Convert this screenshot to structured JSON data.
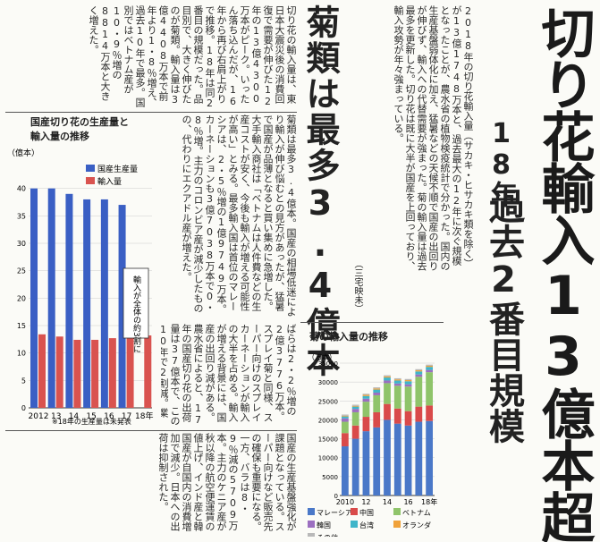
{
  "headline": {
    "main": "切り花輸入13億本超",
    "year": "18年",
    "sub": "過去2番目規模",
    "side": "菊類は最多3.4億本"
  },
  "byline": "（三宅映未）",
  "articles": {
    "col_a": [
      "2018年の切り花輸入量（サカキ・ヒサカキ類を除く）が13億1748万本と、過去最大の12年に次ぐ規模となったことが、農水省の植物検疫統計で分かった。国内の生産基盤弱体化に加え、猛暑などの天候不順で国産の出回りが伸びず、輸入への代替需要が強まった。菊の輸入量は過去最多を更新した。切り花は既に大半が国産を上回っており、輸入攻勢が年々強まっている。"
    ],
    "col_b": [
      "切り花の輸入量は、東日本大震災後の消費回復で需要が伸びた12年の13億4300万本がピーク。いったん落ち込んだが、16年から再び右肩上がりで推移。18年は同2番目の規模だった。品目別で、大きく伸びたのが菊類。輸入量は3億4408万本で前年より1・8％増え、過去10年で最多。国別ではベトナム産が10・9％増の8814万本と大きく増えた。"
    ],
    "col_c": [
      "菊類は最多3.4億本。国産の相場低迷により輸入が伸び悩むとの見方があったが、猛暑で国産が品薄となると買い集めに急増した。大手輸入商社は「ベトナムは人件費などの生産コストが安く、今後も輸入が増える可能性が高い」とみる。最多輸入国は首位のマレーシアは、2・5％増の1億9749万本。カーネーションも3億7038万本で0・8％増。主力のコロンビア産が減少したものの、代わりにエクアドル産が増えた。"
    ],
    "col_d": [
      "ばらは2・2％増の2億3776万本。スプレイ菊と同様、スーパー向けのスプレイカーネーションが輸入の大半を占める。輸入が増える背景には、国産の出回り減がある。農水省によると、17年の国産切り花の出荷量は37億本で、この10年で2割減。業界関係者は「国産の生産回復には有利販売が欠かせない」と話す。マーケットから後押しする産地が求められる。"
    ],
    "col_e": [
      "国産の生産基盤強化が課題となっている。スーパー向けなど販売先の確保も重要になる。一方、バラは8・9％減の5709万本。主力のケニア産が秋以降の航空便運賃の値上げ、インド産と韓国産が自国内の消費増加で減少。日本への出荷は抑制された。"
    ]
  },
  "chart1": {
    "title_line1": "国産切り花の生産量と",
    "title_line2": "輸入量の推移",
    "unit": "（億本）",
    "legend_domestic": "国産生産量",
    "legend_import": "輸入量",
    "callout": "輸入が全体の約3割に",
    "footnote": "※18年の生産量は未発表",
    "colors": {
      "domestic": "#3a5fc4",
      "import": "#d9534f"
    }
  },
  "chart2": {
    "title": "菊の輸入量の推移",
    "unit": "（万本）",
    "legend": [
      "マレーシア",
      "中国",
      "ベトナム",
      "韓国",
      "台湾",
      "オランダ",
      "その他"
    ],
    "colors": [
      "#4a78c8",
      "#d94a4a",
      "#8fc46a",
      "#9b6fc0",
      "#3fb5c9",
      "#f0a23a",
      "#b9b9b9"
    ]
  },
  "chart_data": [
    {
      "type": "bar",
      "title": "国産切り花の生産量と輸入量の推移",
      "categories": [
        "2012",
        "13",
        "14",
        "15",
        "16",
        "17",
        "18年"
      ],
      "series": [
        {
          "name": "国産生産量",
          "values": [
            40,
            40,
            39,
            38,
            38,
            37,
            null
          ]
        },
        {
          "name": "輸入量",
          "values": [
            13.4,
            13.0,
            12.4,
            12.4,
            12.7,
            13.1,
            13.2
          ]
        }
      ],
      "yticks": [
        0,
        5,
        10,
        15,
        20,
        25,
        30,
        35,
        40
      ],
      "ylabel": "（億本）",
      "ylim": [
        0,
        45
      ]
    },
    {
      "type": "bar",
      "stacked": true,
      "title": "菊の輸入量の推移",
      "categories": [
        "2010",
        "11",
        "12",
        "13",
        "14",
        "15",
        "16",
        "17",
        "18年"
      ],
      "series": [
        {
          "name": "マレーシア",
          "values": [
            13000,
            15000,
            17000,
            18000,
            20000,
            19000,
            18500,
            19500,
            19700
          ]
        },
        {
          "name": "中国",
          "values": [
            3500,
            3500,
            3800,
            4000,
            4200,
            4000,
            3800,
            4000,
            4100
          ]
        },
        {
          "name": "ベトナム",
          "values": [
            3000,
            3500,
            4000,
            4500,
            5500,
            6000,
            6500,
            7900,
            8800
          ]
        },
        {
          "name": "韓国",
          "values": [
            900,
            900,
            800,
            700,
            700,
            600,
            600,
            600,
            600
          ]
        },
        {
          "name": "台湾",
          "values": [
            500,
            600,
            700,
            800,
            800,
            800,
            800,
            800,
            800
          ]
        },
        {
          "name": "オランダ",
          "values": [
            200,
            200,
            300,
            300,
            300,
            300,
            300,
            300,
            300
          ]
        },
        {
          "name": "その他",
          "values": [
            300,
            300,
            300,
            300,
            300,
            300,
            300,
            300,
            300
          ]
        }
      ],
      "xtick_labels": [
        "2010",
        "12",
        "14",
        "16",
        "18年"
      ],
      "yticks": [
        0,
        5000,
        10000,
        15000,
        20000,
        25000,
        30000,
        35000
      ],
      "ylabel": "（万本）",
      "ylim": [
        0,
        35000
      ]
    }
  ]
}
